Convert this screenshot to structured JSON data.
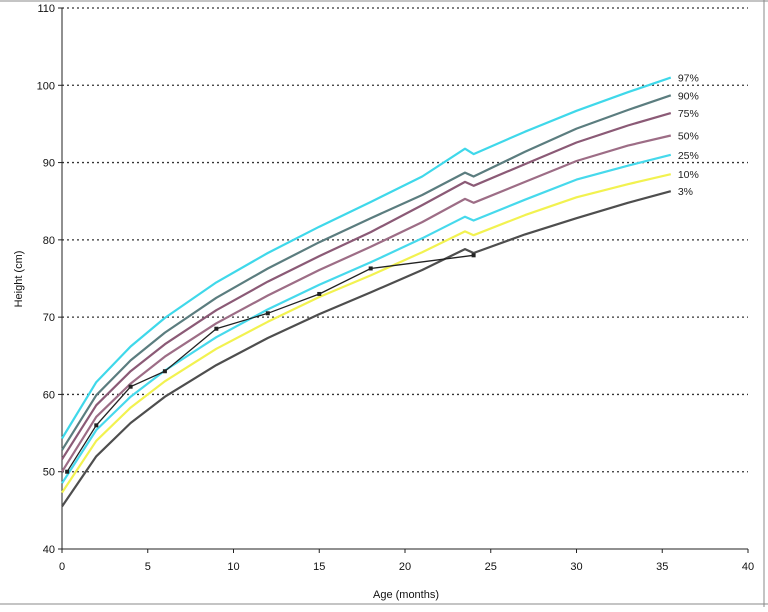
{
  "chart_data": {
    "type": "line",
    "title": "",
    "xlabel": "Age (months)",
    "ylabel": "Height (cm)",
    "xlim": [
      0,
      40
    ],
    "ylim": [
      40,
      110
    ],
    "xticks": [
      0,
      5,
      10,
      15,
      20,
      25,
      30,
      35,
      40
    ],
    "yticks": [
      40,
      50,
      60,
      70,
      80,
      90,
      100,
      110
    ],
    "grid": "horizontal dotted",
    "legend": "labels at right end of curves",
    "percentile_x": [
      0,
      2,
      4,
      6,
      9,
      12,
      15,
      18,
      21,
      23.5,
      24,
      27,
      30,
      33,
      35.5
    ],
    "series": [
      {
        "name": "97%",
        "color": "#3fd8ea",
        "values": [
          54.3,
          61.6,
          66.2,
          69.9,
          74.5,
          78.3,
          81.7,
          84.9,
          88.2,
          91.8,
          91.1,
          94.0,
          96.7,
          99.1,
          101.0
        ]
      },
      {
        "name": "90%",
        "color": "#5b7d7f",
        "values": [
          52.8,
          59.9,
          64.4,
          68.0,
          72.5,
          76.3,
          79.7,
          82.8,
          85.8,
          88.7,
          88.2,
          91.4,
          94.4,
          96.8,
          98.7
        ]
      },
      {
        "name": "75%",
        "color": "#8b5a76",
        "values": [
          51.6,
          58.6,
          63.0,
          66.5,
          70.9,
          74.6,
          77.9,
          81.0,
          84.5,
          87.5,
          87.0,
          89.8,
          92.6,
          94.8,
          96.4
        ]
      },
      {
        "name": "50%",
        "color": "#9d6d86",
        "values": [
          50.0,
          57.1,
          61.4,
          64.9,
          69.2,
          72.8,
          76.1,
          79.1,
          82.3,
          85.3,
          84.8,
          87.5,
          90.2,
          92.2,
          93.5
        ]
      },
      {
        "name": "25%",
        "color": "#46d9ec",
        "values": [
          48.5,
          55.4,
          59.7,
          63.1,
          67.4,
          71.0,
          74.2,
          77.1,
          80.2,
          83.0,
          82.5,
          85.2,
          87.8,
          89.6,
          91.0
        ]
      },
      {
        "name": "10%",
        "color": "#f2f250",
        "values": [
          47.3,
          54.0,
          58.3,
          61.7,
          65.9,
          69.4,
          72.6,
          75.4,
          78.4,
          81.1,
          80.6,
          83.2,
          85.5,
          87.2,
          88.5
        ]
      },
      {
        "name": "3%",
        "color": "#4e4e4e",
        "values": [
          45.5,
          52.0,
          56.3,
          59.7,
          63.8,
          67.3,
          70.4,
          73.2,
          76.1,
          78.8,
          78.3,
          80.7,
          82.8,
          84.8,
          86.3
        ]
      }
    ],
    "child": {
      "color": "#222222",
      "x": [
        0.3,
        2,
        4,
        6,
        9,
        12,
        15,
        18,
        24
      ],
      "y": [
        50,
        56,
        61,
        63,
        68.5,
        70.5,
        73,
        76.3,
        78
      ]
    }
  }
}
